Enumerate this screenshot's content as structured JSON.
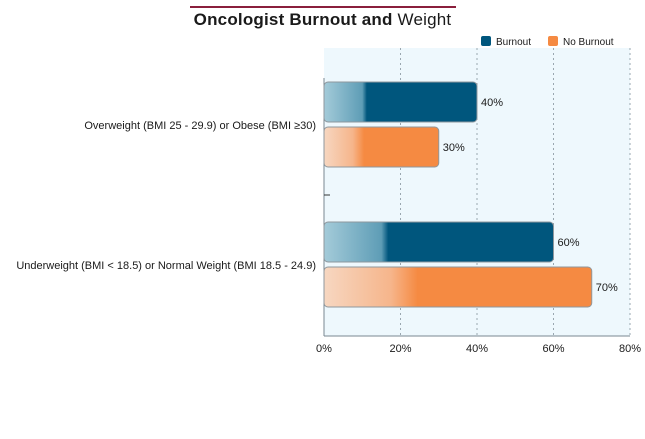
{
  "chart_data": {
    "type": "bar",
    "orientation": "horizontal",
    "title_bold": "Oncologist Burnout and",
    "title_regular": "Weight",
    "categories": [
      "Overweight (BMI 25 - 29.9) or Obese (BMI ≥30)",
      "Underweight (BMI < 18.5) or Normal Weight (BMI 18.5 - 24.9)"
    ],
    "series": [
      {
        "name": "Burnout",
        "values": [
          40,
          60
        ],
        "labels": [
          "40%",
          "60%"
        ],
        "color": "#00567d"
      },
      {
        "name": "No Burnout",
        "values": [
          30,
          70
        ],
        "labels": [
          "30%",
          "70%"
        ],
        "color": "#f58a42"
      }
    ],
    "xlim": [
      0,
      80
    ],
    "x_ticks": [
      {
        "value": 0,
        "label": "0%"
      },
      {
        "value": 20,
        "label": "20%"
      },
      {
        "value": 40,
        "label": "40%"
      },
      {
        "value": 60,
        "label": "60%"
      },
      {
        "value": 80,
        "label": "80%"
      }
    ],
    "grid": true,
    "legend_position": "top-right",
    "plot_background": "#eef8fd"
  }
}
